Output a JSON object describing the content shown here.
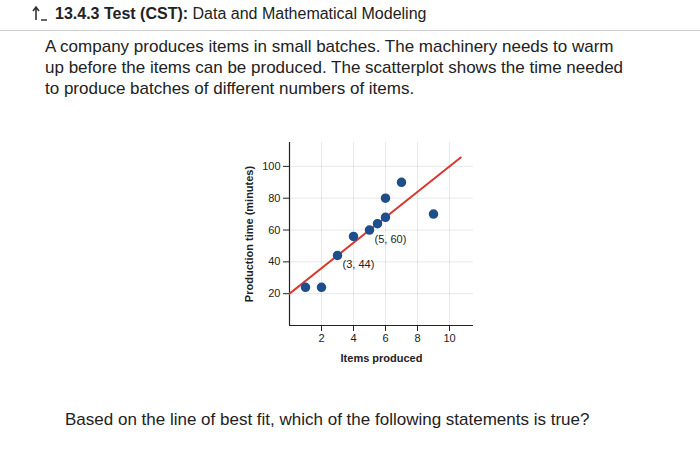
{
  "header": {
    "label": "13.4.3 Test (CST):",
    "title": "Data and Mathematical Modeling"
  },
  "intro": [
    "A company produces items in small batches. The machinery needs to warm",
    "up before the items can be produced. The scatterplot shows the time needed",
    "to produce batches of different numbers of items."
  ],
  "question": "Based on the line of best fit, which of the following statements is true?",
  "chart_data": {
    "type": "scatter",
    "x_label": "Items produced",
    "y_label": "Production time (minutes)",
    "x": [
      1,
      2,
      3,
      4,
      5,
      5.5,
      6,
      6,
      7,
      9
    ],
    "values": [
      24,
      24,
      44,
      56,
      60,
      64,
      68,
      80,
      90,
      70
    ],
    "color": "#1f4e8c",
    "marker": "circle",
    "fit_line": {
      "color": "#d9382f",
      "x": [
        0,
        10.7
      ],
      "values": [
        20,
        105.6
      ]
    },
    "annotations": [
      {
        "text": "(5, 60)",
        "x": 5,
        "y": 60
      },
      {
        "text": "(3, 44)",
        "x": 3,
        "y": 44
      }
    ],
    "xlim": [
      0,
      11.5
    ],
    "ylim": [
      0,
      115
    ],
    "xticks": [
      2,
      4,
      6,
      8,
      10
    ],
    "yticks": [
      20,
      40,
      60,
      80,
      100
    ],
    "grid": true
  }
}
